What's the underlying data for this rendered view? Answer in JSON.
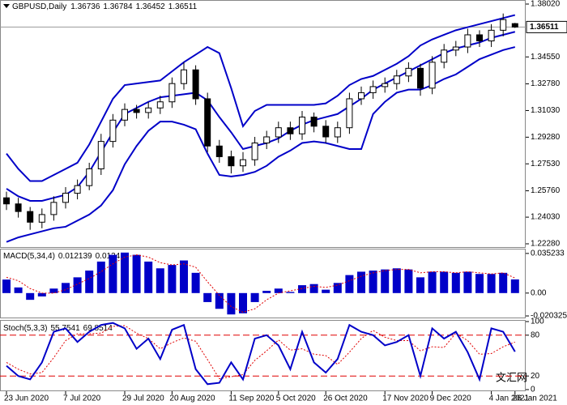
{
  "chart_data": [
    {
      "type": "candlestick",
      "title": "GBPUSD,Daily",
      "categories": [
        "23 Jun 2020",
        null,
        null,
        null,
        null,
        "7 Jul 2020",
        null,
        null,
        null,
        null,
        "29 Jul 2020",
        null,
        null,
        null,
        "20 Aug 2020",
        null,
        null,
        null,
        null,
        "11 Sep 2020",
        null,
        null,
        null,
        "5 Oct 2020",
        null,
        null,
        null,
        "26 Oct 2020",
        null,
        null,
        null,
        null,
        "17 Nov 2020",
        null,
        null,
        null,
        "9 Dec 2020",
        null,
        null,
        null,
        null,
        "4 Jan 2021",
        null,
        "26 Jan 2021"
      ],
      "open": [
        1.253,
        1.249,
        1.244,
        1.237,
        1.242,
        1.25,
        1.256,
        1.261,
        1.272,
        1.29,
        1.304,
        1.311,
        1.309,
        1.312,
        1.316,
        1.328,
        1.337,
        1.318,
        1.287,
        1.28,
        1.274,
        1.278,
        1.289,
        1.293,
        1.299,
        1.295,
        1.306,
        1.3,
        1.293,
        1.299,
        1.318,
        1.322,
        1.326,
        1.328,
        1.333,
        1.338,
        1.325,
        1.342,
        1.35,
        1.352,
        1.36,
        1.356,
        1.363,
        1.36736
      ],
      "high": [
        1.257,
        1.253,
        1.247,
        1.246,
        1.254,
        1.26,
        1.265,
        1.276,
        1.295,
        1.308,
        1.315,
        1.314,
        1.316,
        1.32,
        1.332,
        1.342,
        1.34,
        1.322,
        1.291,
        1.284,
        1.283,
        1.293,
        1.297,
        1.303,
        1.303,
        1.31,
        1.309,
        1.304,
        1.303,
        1.322,
        1.326,
        1.33,
        1.332,
        1.337,
        1.342,
        1.341,
        1.346,
        1.354,
        1.356,
        1.364,
        1.363,
        1.367,
        1.374,
        1.36784
      ],
      "low": [
        1.245,
        1.24,
        1.232,
        1.233,
        1.238,
        1.246,
        1.252,
        1.258,
        1.268,
        1.286,
        1.3,
        1.305,
        1.305,
        1.308,
        1.312,
        1.324,
        1.314,
        1.283,
        1.276,
        1.269,
        1.27,
        1.274,
        1.285,
        1.289,
        1.291,
        1.291,
        1.296,
        1.289,
        1.289,
        1.295,
        1.314,
        1.318,
        1.322,
        1.324,
        1.329,
        1.32,
        1.321,
        1.338,
        1.346,
        1.348,
        1.352,
        1.352,
        1.359,
        1.36452
      ],
      "close": [
        1.249,
        1.244,
        1.237,
        1.242,
        1.25,
        1.256,
        1.261,
        1.272,
        1.29,
        1.304,
        1.311,
        1.309,
        1.312,
        1.316,
        1.328,
        1.337,
        1.318,
        1.287,
        1.28,
        1.274,
        1.278,
        1.289,
        1.293,
        1.299,
        1.295,
        1.306,
        1.3,
        1.293,
        1.299,
        1.318,
        1.322,
        1.326,
        1.328,
        1.333,
        1.338,
        1.325,
        1.342,
        1.35,
        1.352,
        1.36,
        1.356,
        1.363,
        1.37,
        1.36511
      ],
      "bands": {
        "color": "#0000c8",
        "upper": [
          1.282,
          1.272,
          1.264,
          1.264,
          1.268,
          1.272,
          1.276,
          1.288,
          1.303,
          1.318,
          1.327,
          1.328,
          1.329,
          1.33,
          1.336,
          1.342,
          1.347,
          1.352,
          1.348,
          1.325,
          1.3,
          1.31,
          1.314,
          1.314,
          1.314,
          1.314,
          1.314,
          1.315,
          1.32,
          1.327,
          1.331,
          1.333,
          1.337,
          1.341,
          1.346,
          1.353,
          1.357,
          1.36,
          1.363,
          1.365,
          1.367,
          1.369,
          1.371,
          1.373
        ],
        "middle": [
          1.259,
          1.254,
          1.251,
          1.251,
          1.253,
          1.255,
          1.26,
          1.27,
          1.283,
          1.296,
          1.308,
          1.312,
          1.316,
          1.319,
          1.32,
          1.321,
          1.322,
          1.317,
          1.306,
          1.296,
          1.285,
          1.287,
          1.289,
          1.292,
          1.297,
          1.301,
          1.304,
          1.306,
          1.308,
          1.313,
          1.318,
          1.324,
          1.328,
          1.332,
          1.336,
          1.34,
          1.344,
          1.348,
          1.351,
          1.353,
          1.355,
          1.358,
          1.36,
          1.362
        ],
        "lower": [
          1.224,
          1.227,
          1.229,
          1.231,
          1.233,
          1.234,
          1.238,
          1.242,
          1.248,
          1.258,
          1.275,
          1.287,
          1.297,
          1.303,
          1.303,
          1.301,
          1.298,
          1.282,
          1.268,
          1.267,
          1.268,
          1.27,
          1.274,
          1.28,
          1.284,
          1.289,
          1.29,
          1.289,
          1.287,
          1.285,
          1.285,
          1.308,
          1.316,
          1.322,
          1.324,
          1.324,
          1.327,
          1.331,
          1.334,
          1.339,
          1.344,
          1.347,
          1.35,
          1.352
        ]
      },
      "last_price": 1.36511,
      "ylim": [
        1.22067,
        1.38286
      ],
      "yticks": [
        {
          "value": 1.3802,
          "label": "1.38020"
        },
        {
          "value": 1.3455,
          "label": "1.34550"
        },
        {
          "value": 1.3278,
          "label": "1.32780"
        },
        {
          "value": 1.3103,
          "label": "1.31030"
        },
        {
          "value": 1.2928,
          "label": "1.29280"
        },
        {
          "value": 1.2753,
          "label": "1.27530"
        },
        {
          "value": 1.2576,
          "label": "1.25760"
        },
        {
          "value": 1.2403,
          "label": "1.24030"
        },
        {
          "value": 1.2228,
          "label": "1.22280"
        }
      ]
    },
    {
      "type": "macd",
      "title": "MACD(5,34,4)",
      "color": "#0000c8",
      "signal_color": "#e00000",
      "values": [
        0.012,
        0.005,
        -0.006,
        -0.003,
        0.004,
        0.009,
        0.014,
        0.02,
        0.028,
        0.034,
        0.036,
        0.034,
        0.028,
        0.022,
        0.025,
        0.029,
        0.018,
        -0.008,
        -0.014,
        -0.019,
        -0.018,
        -0.008,
        0.002,
        0.004,
        0.001,
        0.007,
        0.008,
        0.003,
        0.009,
        0.016,
        0.019,
        0.02,
        0.021,
        0.022,
        0.021,
        0.014,
        0.019,
        0.019,
        0.018,
        0.019,
        0.017,
        0.017,
        0.018,
        0.012139
      ],
      "signal": [
        0.014,
        0.011,
        0.004,
        0.0,
        0.0,
        0.003,
        0.008,
        0.013,
        0.019,
        0.026,
        0.032,
        0.034,
        0.032,
        0.027,
        0.025,
        0.026,
        0.023,
        0.01,
        -0.002,
        -0.012,
        -0.017,
        -0.014,
        -0.006,
        0.0,
        0.002,
        0.004,
        0.006,
        0.005,
        0.007,
        0.011,
        0.015,
        0.018,
        0.02,
        0.021,
        0.021,
        0.018,
        0.019,
        0.019,
        0.018,
        0.019,
        0.018,
        0.017,
        0.018,
        0.0134
      ],
      "ylim": [
        -0.02174,
        0.03876
      ],
      "yticks": [
        0.035233,
        {
          "value": 0,
          "label": "0.00"
        },
        -0.020325
      ]
    },
    {
      "type": "stochastic",
      "title": "Stoch(5,3,3)",
      "color": "#0000c8",
      "signal_color": "#e00000",
      "main": [
        35,
        20,
        15,
        40,
        85,
        90,
        70,
        85,
        95,
        98,
        90,
        60,
        75,
        45,
        88,
        95,
        30,
        8,
        10,
        40,
        15,
        75,
        80,
        65,
        30,
        85,
        40,
        25,
        45,
        95,
        85,
        80,
        65,
        70,
        80,
        20,
        90,
        75,
        85,
        55,
        15,
        90,
        85,
        55.7541
      ],
      "signal": [
        40,
        30,
        23,
        25,
        47,
        72,
        82,
        82,
        83,
        93,
        94,
        83,
        75,
        60,
        69,
        76,
        71,
        44,
        16,
        19,
        22,
        43,
        57,
        73,
        58,
        60,
        52,
        50,
        37,
        55,
        75,
        87,
        77,
        72,
        72,
        57,
        63,
        62,
        83,
        72,
        52,
        53,
        63,
        69.8514
      ],
      "levels": [
        20,
        80
      ],
      "ylim": [
        0,
        100
      ],
      "yticks": [
        100,
        80,
        20,
        0
      ]
    }
  ],
  "watermark": "文汇网"
}
